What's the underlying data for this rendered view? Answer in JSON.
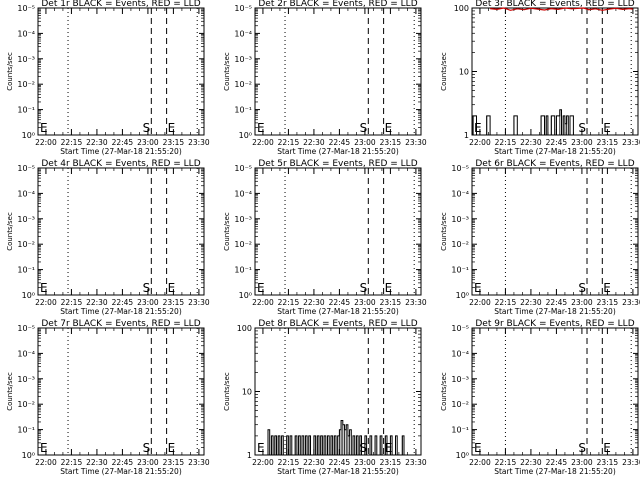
{
  "chart_data": [
    {
      "type": "line",
      "title": "Det 1r BLACK = Events, RED = LLD",
      "xlabel": "Start Time (27-Mar-18 21:55:20)",
      "ylabel": "Counts/sec",
      "x_ticks": [
        "22:00",
        "22:15",
        "22:30",
        "22:45",
        "23:00",
        "23:15",
        "23:30"
      ],
      "y_scale": "log",
      "y_ticks": [
        "10⁰",
        "10⁻¹",
        "10⁻²",
        "10⁻³",
        "10⁻⁴",
        "10⁻⁵"
      ],
      "xlim": [
        "21:55:20",
        "23:33:00"
      ],
      "markers": [
        {
          "time": "22:13",
          "style": "dotted"
        },
        {
          "time": "23:02",
          "style": "dashed",
          "label": "S"
        },
        {
          "time": "23:11",
          "style": "dashed",
          "label": "E"
        },
        {
          "time": "23:29",
          "style": "dotted"
        }
      ],
      "series": []
    },
    {
      "type": "line",
      "title": "Det 2r BLACK = Events, RED = LLD",
      "xlabel": "Start Time (27-Mar-18 21:55:20)",
      "ylabel": "Counts/sec",
      "x_ticks": [
        "22:00",
        "22:15",
        "22:30",
        "22:45",
        "23:00",
        "23:15",
        "23:30"
      ],
      "y_scale": "log",
      "y_ticks": [
        "10⁰",
        "10⁻¹",
        "10⁻²",
        "10⁻³",
        "10⁻⁴",
        "10⁻⁵"
      ],
      "xlim": [
        "21:55:20",
        "23:33:00"
      ],
      "markers": [
        {
          "time": "22:13",
          "style": "dotted"
        },
        {
          "time": "23:02",
          "style": "dashed",
          "label": "S"
        },
        {
          "time": "23:11",
          "style": "dashed",
          "label": "E"
        },
        {
          "time": "23:29",
          "style": "dotted"
        }
      ],
      "series": []
    },
    {
      "type": "line",
      "title": "Det 3r BLACK = Events, RED = LLD",
      "xlabel": "Start Time (27-Mar-18 21:55:20)",
      "ylabel": "Counts/sec",
      "x_ticks": [
        "22:00",
        "22:15",
        "22:30",
        "22:45",
        "23:00",
        "23:15",
        "23:30"
      ],
      "y_scale": "log",
      "y_ticks": [
        "1",
        "10",
        "100"
      ],
      "xlim": [
        "21:55:20",
        "23:33:00"
      ],
      "markers": [
        {
          "time": "22:15",
          "style": "dotted"
        },
        {
          "time": "23:03",
          "style": "dashed",
          "label": "S"
        },
        {
          "time": "23:12",
          "style": "dashed",
          "label": "E"
        },
        {
          "time": "23:29",
          "style": "dotted"
        }
      ],
      "series": [
        {
          "color": "#000000",
          "style": "histogram",
          "points": [
            [
              "21:56:00",
              2
            ],
            [
              "21:58:00",
              1
            ],
            [
              "22:04:00",
              2
            ],
            [
              "22:06:00",
              1
            ],
            [
              "22:20:00",
              2
            ],
            [
              "22:22:00",
              1
            ],
            [
              "22:36:00",
              2
            ],
            [
              "22:38:00",
              1
            ],
            [
              "22:39:00",
              2
            ],
            [
              "22:40:00",
              1
            ],
            [
              "22:42:00",
              2
            ],
            [
              "22:44:00",
              1
            ],
            [
              "22:45:00",
              2
            ],
            [
              "22:47:00",
              2.5
            ],
            [
              "22:48:00",
              1
            ],
            [
              "22:49:00",
              2
            ],
            [
              "22:50:00",
              1.5
            ],
            [
              "22:51:00",
              2
            ],
            [
              "22:52:00",
              1
            ],
            [
              "22:53:00",
              2
            ],
            [
              "22:55:00",
              1
            ]
          ]
        },
        {
          "color": "#cc0000",
          "style": "line",
          "points": [
            [
              "22:06:00",
              98
            ],
            [
              "22:10:00",
              95
            ],
            [
              "22:14:00",
              100
            ],
            [
              "22:18:00",
              92
            ],
            [
              "22:22:00",
              97
            ],
            [
              "22:26:00",
              94
            ],
            [
              "22:30:00",
              99
            ],
            [
              "22:34:00",
              96
            ],
            [
              "22:38:00",
              93
            ],
            [
              "22:42:00",
              98
            ],
            [
              "22:46:00",
              95
            ],
            [
              "22:50:00",
              100
            ],
            [
              "22:54:00",
              97
            ],
            [
              "23:01:00",
              100
            ],
            [
              "23:04:00",
              94
            ],
            [
              "23:08:00",
              97
            ],
            [
              "23:12:00",
              92
            ],
            [
              "23:16:00",
              96
            ],
            [
              "23:20:00",
              99
            ],
            [
              "23:24:00",
              95
            ],
            [
              "23:28:00",
              98
            ],
            [
              "23:30:00",
              96
            ]
          ]
        }
      ]
    },
    {
      "type": "line",
      "title": "Det 4r BLACK = Events, RED = LLD",
      "xlabel": "Start Time (27-Mar-18 21:55:20)",
      "ylabel": "Counts/sec",
      "x_ticks": [
        "22:00",
        "22:15",
        "22:30",
        "22:45",
        "23:00",
        "23:15",
        "23:30"
      ],
      "y_scale": "log",
      "y_ticks": [
        "10⁰",
        "10⁻¹",
        "10⁻²",
        "10⁻³",
        "10⁻⁴",
        "10⁻⁵"
      ],
      "xlim": [
        "21:55:20",
        "23:33:00"
      ],
      "markers": [
        {
          "time": "22:13",
          "style": "dotted"
        },
        {
          "time": "23:02",
          "style": "dashed",
          "label": "S"
        },
        {
          "time": "23:11",
          "style": "dashed",
          "label": "E"
        },
        {
          "time": "23:29",
          "style": "dotted"
        }
      ],
      "series": []
    },
    {
      "type": "line",
      "title": "Det 5r BLACK = Events, RED = LLD",
      "xlabel": "Start Time (27-Mar-18 21:55:20)",
      "ylabel": "Counts/sec",
      "x_ticks": [
        "22:00",
        "22:15",
        "22:30",
        "22:45",
        "23:00",
        "23:15",
        "23:30"
      ],
      "y_scale": "log",
      "y_ticks": [
        "10⁰",
        "10⁻¹",
        "10⁻²",
        "10⁻³",
        "10⁻⁴",
        "10⁻⁵"
      ],
      "xlim": [
        "21:55:20",
        "23:33:00"
      ],
      "markers": [
        {
          "time": "22:13",
          "style": "dotted"
        },
        {
          "time": "23:02",
          "style": "dashed",
          "label": "S"
        },
        {
          "time": "23:11",
          "style": "dashed",
          "label": "E"
        },
        {
          "time": "23:29",
          "style": "dotted"
        }
      ],
      "series": []
    },
    {
      "type": "line",
      "title": "Det 6r BLACK = Events, RED = LLD",
      "xlabel": "Start Time (27-Mar-18 21:55:20)",
      "ylabel": "Counts/sec",
      "x_ticks": [
        "22:00",
        "22:15",
        "22:30",
        "22:45",
        "23:00",
        "23:15",
        "23:30"
      ],
      "y_scale": "log",
      "y_ticks": [
        "10⁰",
        "10⁻¹",
        "10⁻²",
        "10⁻³",
        "10⁻⁴",
        "10⁻⁵"
      ],
      "xlim": [
        "21:55:20",
        "23:33:00"
      ],
      "markers": [
        {
          "time": "22:15",
          "style": "dotted"
        },
        {
          "time": "23:03",
          "style": "dashed",
          "label": "S"
        },
        {
          "time": "23:12",
          "style": "dashed",
          "label": "E"
        },
        {
          "time": "23:29",
          "style": "dotted"
        }
      ],
      "series": []
    },
    {
      "type": "line",
      "title": "Det 7r BLACK = Events, RED = LLD",
      "xlabel": "Start Time (27-Mar-18 21:55:20)",
      "ylabel": "Counts/sec",
      "x_ticks": [
        "22:00",
        "22:15",
        "22:30",
        "22:45",
        "23:00",
        "23:15",
        "23:30"
      ],
      "y_scale": "log",
      "y_ticks": [
        "10⁰",
        "10⁻¹",
        "10⁻²",
        "10⁻³",
        "10⁻⁴",
        "10⁻⁵"
      ],
      "xlim": [
        "21:55:20",
        "23:33:00"
      ],
      "markers": [
        {
          "time": "22:13",
          "style": "dotted"
        },
        {
          "time": "23:02",
          "style": "dashed",
          "label": "S"
        },
        {
          "time": "23:11",
          "style": "dashed",
          "label": "E"
        },
        {
          "time": "23:29",
          "style": "dotted"
        }
      ],
      "series": []
    },
    {
      "type": "line",
      "title": "Det 8r BLACK = Events, RED = LLD",
      "xlabel": "Start Time (27-Mar-18 21:55:20)",
      "ylabel": "Counts/sec",
      "x_ticks": [
        "22:00",
        "22:15",
        "22:30",
        "22:45",
        "23:00",
        "23:15",
        "23:30"
      ],
      "y_scale": "log",
      "y_ticks": [
        "1",
        "10",
        "100"
      ],
      "xlim": [
        "21:55:20",
        "23:33:00"
      ],
      "markers": [
        {
          "time": "22:13",
          "style": "dotted"
        },
        {
          "time": "23:02",
          "style": "dashed",
          "label": "S"
        },
        {
          "time": "23:11",
          "style": "dashed",
          "label": "E"
        },
        {
          "time": "23:29",
          "style": "dotted"
        }
      ],
      "series": [
        {
          "color": "#000000",
          "style": "histogram",
          "points": [
            [
              "22:03:00",
              2.5
            ],
            [
              "22:04:00",
              1
            ],
            [
              "22:05:00",
              2
            ],
            [
              "22:06:00",
              1
            ],
            [
              "22:07:00",
              2
            ],
            [
              "22:08:00",
              1
            ],
            [
              "22:09:00",
              2
            ],
            [
              "22:10:00",
              1
            ],
            [
              "22:11:00",
              2
            ],
            [
              "22:12:00",
              1
            ],
            [
              "22:14:00",
              2
            ],
            [
              "22:15:00",
              1
            ],
            [
              "22:16:00",
              2
            ],
            [
              "22:17:00",
              1
            ],
            [
              "22:19:00",
              2
            ],
            [
              "22:20:00",
              1
            ],
            [
              "22:21:00",
              2
            ],
            [
              "22:22:00",
              1
            ],
            [
              "22:23:00",
              2
            ],
            [
              "22:24:00",
              1
            ],
            [
              "22:25:00",
              2
            ],
            [
              "22:26:00",
              1
            ],
            [
              "22:27:00",
              2
            ],
            [
              "22:28:00",
              1
            ],
            [
              "22:30:00",
              2
            ],
            [
              "22:31:00",
              1
            ],
            [
              "22:32:00",
              2
            ],
            [
              "22:33:00",
              1
            ],
            [
              "22:34:00",
              2
            ],
            [
              "22:35:00",
              1
            ],
            [
              "22:36:00",
              2
            ],
            [
              "22:37:00",
              1
            ],
            [
              "22:38:00",
              2
            ],
            [
              "22:39:00",
              1
            ],
            [
              "22:40:00",
              2
            ],
            [
              "22:41:00",
              1
            ],
            [
              "22:42:00",
              2
            ],
            [
              "22:43:00",
              1
            ],
            [
              "22:44:00",
              2
            ],
            [
              "22:45:00",
              2.5
            ],
            [
              "22:46:00",
              3.5
            ],
            [
              "22:47:00",
              3
            ],
            [
              "22:48:00",
              2.5
            ],
            [
              "22:49:00",
              3
            ],
            [
              "22:50:00",
              2
            ],
            [
              "22:51:00",
              2.5
            ],
            [
              "22:52:00",
              1
            ],
            [
              "22:53:00",
              2
            ],
            [
              "22:54:00",
              1
            ],
            [
              "22:55:00",
              2
            ],
            [
              "22:56:00",
              1
            ],
            [
              "22:57:00",
              2
            ],
            [
              "22:58:00",
              1
            ],
            [
              "23:00:00",
              2
            ],
            [
              "23:01:00",
              1
            ],
            [
              "23:03:00",
              2
            ],
            [
              "23:04:00",
              1
            ],
            [
              "23:06:00",
              2
            ],
            [
              "23:07:00",
              1
            ],
            [
              "23:09:00",
              2
            ],
            [
              "23:10:00",
              1
            ],
            [
              "23:12:00",
              2
            ],
            [
              "23:13:00",
              1
            ],
            [
              "23:15:00",
              2
            ],
            [
              "23:16:00",
              1
            ],
            [
              "23:18:00",
              2
            ],
            [
              "23:19:00",
              1
            ],
            [
              "23:22:00",
              2
            ],
            [
              "23:23:00",
              1
            ]
          ]
        }
      ]
    },
    {
      "type": "line",
      "title": "Det 9r BLACK = Events, RED = LLD",
      "xlabel": "Start Time (27-Mar-18 21:55:20)",
      "ylabel": "Counts/sec",
      "x_ticks": [
        "22:00",
        "22:15",
        "22:30",
        "22:45",
        "23:00",
        "23:15",
        "23:30"
      ],
      "y_scale": "log",
      "y_ticks": [
        "10⁰",
        "10⁻¹",
        "10⁻²",
        "10⁻³",
        "10⁻⁴",
        "10⁻⁵"
      ],
      "xlim": [
        "21:55:20",
        "23:33:00"
      ],
      "markers": [
        {
          "time": "22:15",
          "style": "dotted"
        },
        {
          "time": "23:03",
          "style": "dashed",
          "label": "S"
        },
        {
          "time": "23:12",
          "style": "dashed",
          "label": "E"
        },
        {
          "time": "23:29",
          "style": "dotted"
        }
      ],
      "series": []
    }
  ]
}
